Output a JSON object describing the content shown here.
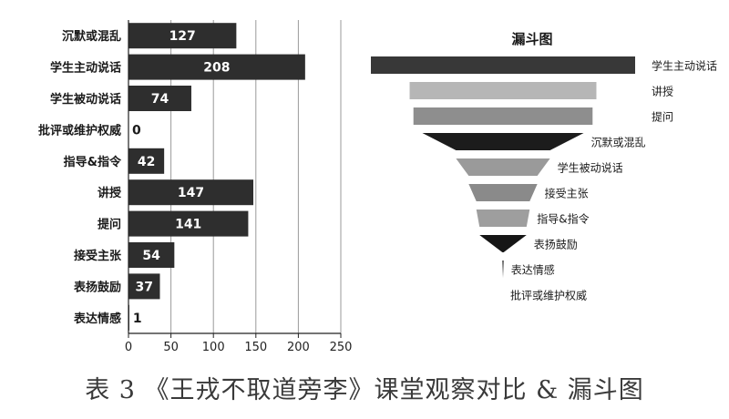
{
  "caption": "表 3 《王戎不取道旁李》课堂观察对比 & 漏斗图",
  "chart_data": [
    {
      "type": "bar",
      "orientation": "horizontal",
      "categories": [
        "沉默或混乱",
        "学生主动说话",
        "学生被动说话",
        "批评或维护权威",
        "指导&指令",
        "讲授",
        "提问",
        "接受主张",
        "表扬鼓励",
        "表达情感"
      ],
      "values": [
        127,
        208,
        74,
        0,
        42,
        147,
        141,
        54,
        37,
        1
      ],
      "data_labels": [
        "127",
        "208",
        "74",
        "0",
        "42",
        "147",
        "141",
        "54",
        "37",
        "1"
      ],
      "xlim": [
        0,
        250
      ],
      "x_ticks": [
        "0",
        "50",
        "100",
        "150",
        "200",
        "250"
      ],
      "grid": true,
      "bar_color": "#2e2e2e"
    },
    {
      "type": "funnel",
      "title": "漏斗图",
      "categories": [
        "学生主动说话",
        "讲授",
        "提问",
        "沉默或混乱",
        "学生被动说话",
        "接受主张",
        "指导&指令",
        "表扬鼓励",
        "表达情感",
        "批评或维护权威"
      ],
      "values": [
        208,
        147,
        141,
        127,
        74,
        54,
        42,
        37,
        1,
        0
      ],
      "colors": [
        "#383838",
        "#b6b6b6",
        "#8e8e8e",
        "#1c1c1c",
        "#9a9a9a",
        "#8a8a8a",
        "#9e9e9e",
        "#161616",
        "#2a2a2a",
        "#2a2a2a"
      ]
    }
  ]
}
